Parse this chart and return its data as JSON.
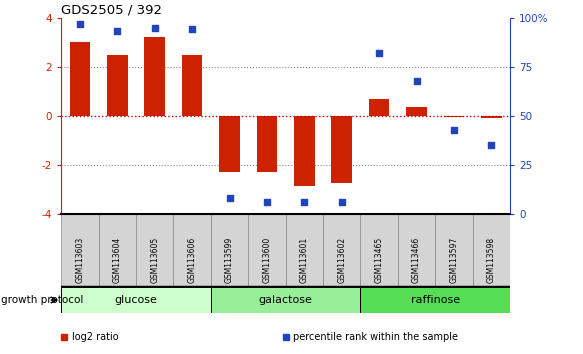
{
  "title": "GDS2505 / 392",
  "samples": [
    "GSM113603",
    "GSM113604",
    "GSM113605",
    "GSM113606",
    "GSM113599",
    "GSM113600",
    "GSM113601",
    "GSM113602",
    "GSM113465",
    "GSM113466",
    "GSM113597",
    "GSM113598"
  ],
  "log2_ratio": [
    3.0,
    2.5,
    3.2,
    2.5,
    -2.3,
    -2.3,
    -2.85,
    -2.75,
    0.7,
    0.35,
    -0.05,
    -0.1
  ],
  "percentile_rank": [
    97,
    93,
    95,
    94,
    8,
    6,
    6,
    6,
    82,
    68,
    43,
    35
  ],
  "bar_color": "#cc2200",
  "dot_color": "#2244bb",
  "ylim": [
    -4,
    4
  ],
  "y2lim": [
    0,
    100
  ],
  "yticks": [
    -4,
    -2,
    0,
    2,
    4
  ],
  "y2ticks": [
    0,
    25,
    50,
    75,
    100
  ],
  "y2ticklabels": [
    "0",
    "25",
    "50",
    "75",
    "100%"
  ],
  "groups": [
    {
      "label": "glucose",
      "start": 0,
      "end": 3,
      "color": "#ccffcc"
    },
    {
      "label": "galactose",
      "start": 4,
      "end": 7,
      "color": "#99ee99"
    },
    {
      "label": "raffinose",
      "start": 8,
      "end": 11,
      "color": "#55dd55"
    }
  ],
  "group_label": "growth protocol",
  "legend_items": [
    {
      "color": "#cc2200",
      "label": "log2 ratio"
    },
    {
      "color": "#2244bb",
      "label": "percentile rank within the sample"
    }
  ],
  "bar_width": 0.55,
  "cell_facecolor": "#d4d4d4"
}
